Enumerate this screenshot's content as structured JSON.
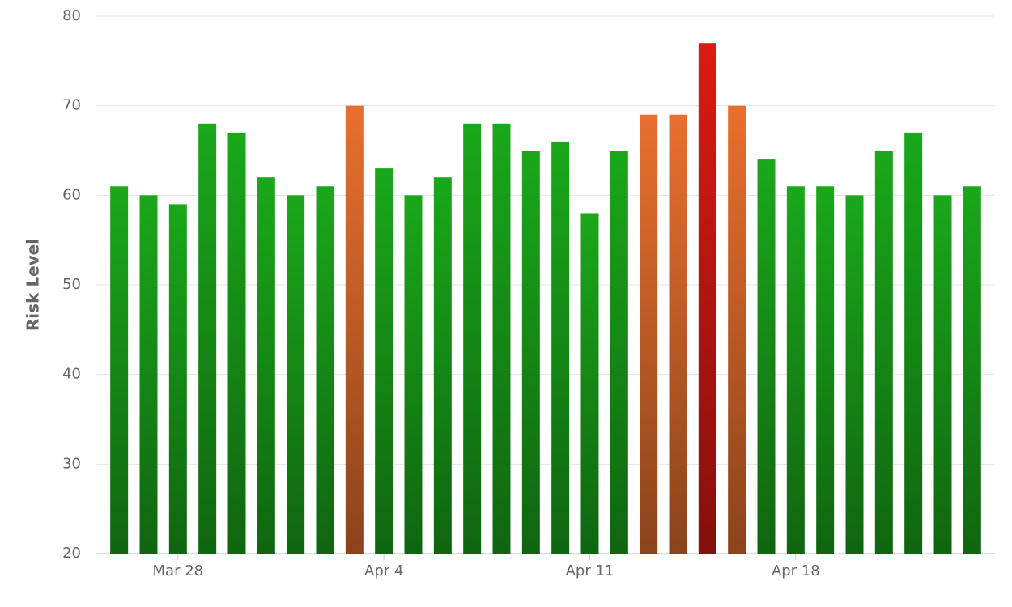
{
  "chart_data": {
    "type": "bar",
    "y_label": "Risk Level",
    "categories": [
      null,
      null,
      "Mar 28",
      null,
      null,
      null,
      null,
      null,
      null,
      "Apr 4",
      null,
      null,
      null,
      null,
      null,
      null,
      "Apr 11",
      null,
      null,
      null,
      null,
      null,
      null,
      "Apr 18",
      null,
      null,
      null,
      null,
      null,
      null
    ],
    "values": [
      61,
      60,
      59,
      68,
      67,
      62,
      60,
      61,
      70,
      63,
      60,
      62,
      68,
      68,
      65,
      66,
      58,
      65,
      69,
      69,
      77,
      70,
      64,
      61,
      61,
      60,
      65,
      67,
      60,
      61
    ],
    "colors": [
      "#1aa81a",
      "#1aa81a",
      "#1aa81a",
      "#1aa81a",
      "#1aa81a",
      "#1aa81a",
      "#1aa81a",
      "#1aa81a",
      "#e8702e",
      "#1aa81a",
      "#1aa81a",
      "#1aa81a",
      "#1aa81a",
      "#1aa81a",
      "#1aa81a",
      "#1aa81a",
      "#1aa81a",
      "#1aa81a",
      "#e8702e",
      "#e8702e",
      "#dc1a14",
      "#e8702e",
      "#1aa81a",
      "#1aa81a",
      "#1aa81a",
      "#1aa81a",
      "#1aa81a",
      "#1aa81a",
      "#1aa81a",
      "#1aa81a"
    ],
    "ylim": [
      20,
      80
    ],
    "yticks": [
      20,
      30,
      40,
      50,
      60,
      70,
      80
    ],
    "grid": true
  }
}
